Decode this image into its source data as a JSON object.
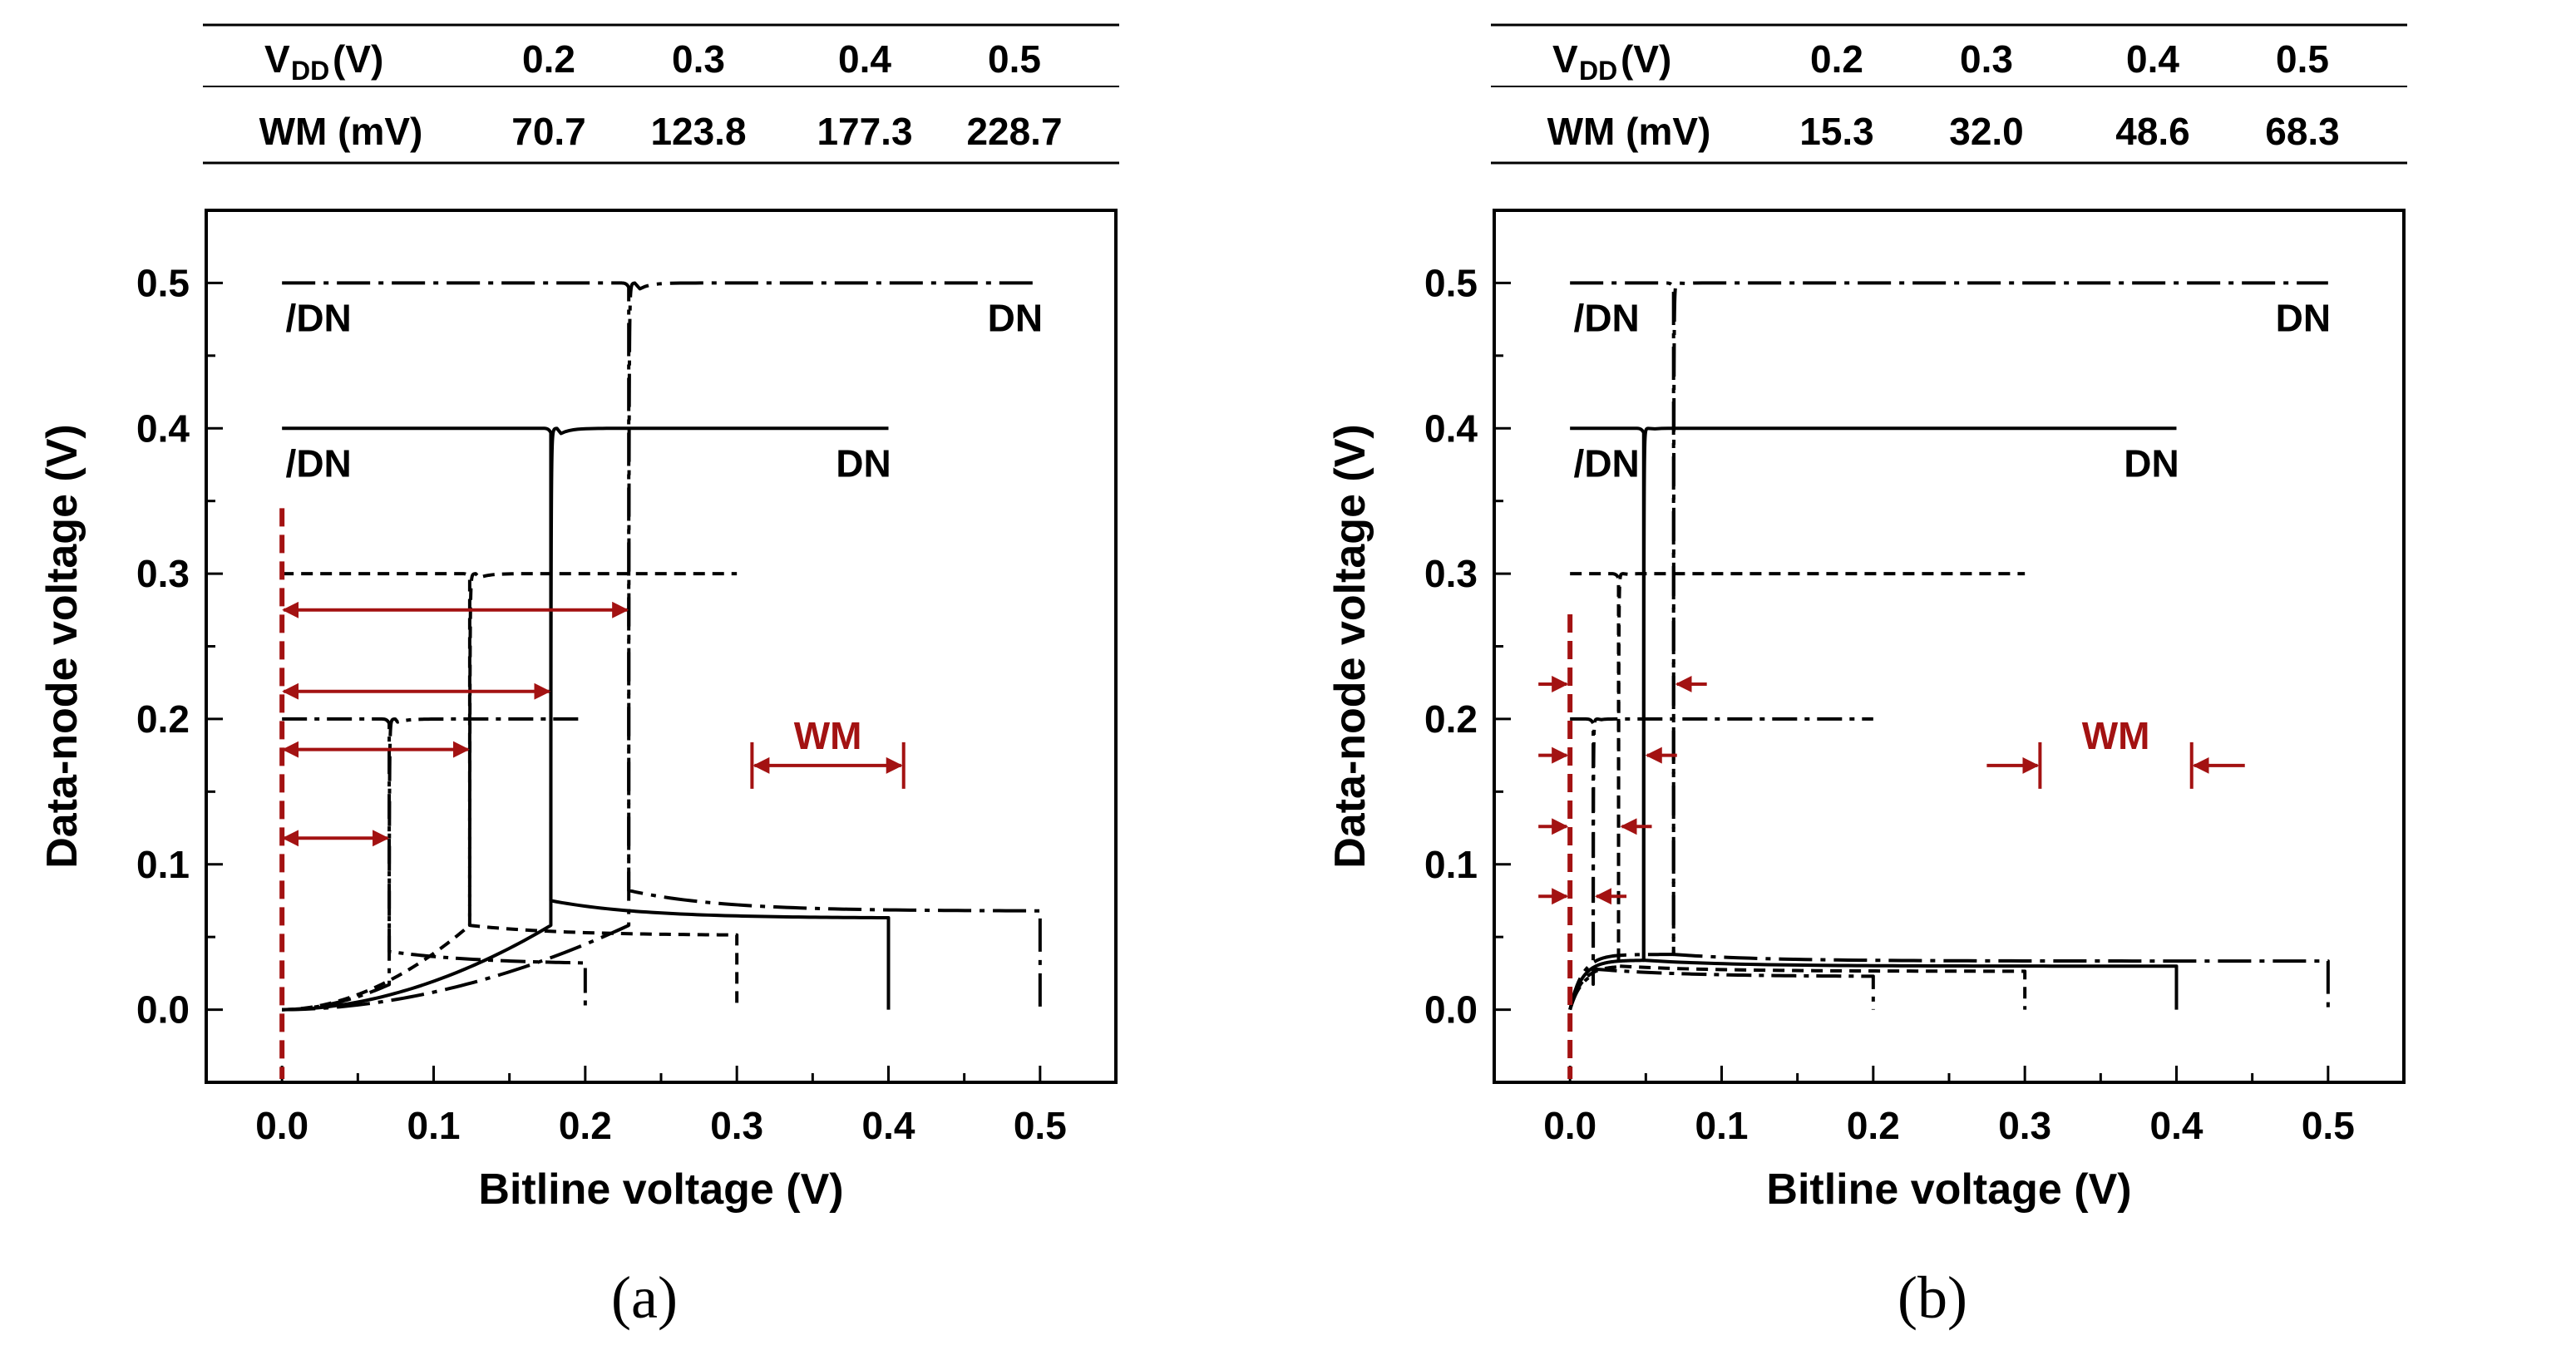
{
  "chart_data": [
    {
      "type": "line",
      "panel_label": "(a)",
      "table": {
        "row_headers": [
          "V",
          "DD",
          "(V)",
          "WM (mV)"
        ],
        "columns": [
          "0.2",
          "0.3",
          "0.4",
          "0.5"
        ],
        "wm_values": [
          "70.7",
          "123.8",
          "177.3",
          "228.7"
        ]
      },
      "xlabel": "Bitline voltage (V)",
      "ylabel": "Data-node voltage (V)",
      "xlim": [
        -0.05,
        0.55
      ],
      "ylim": [
        -0.05,
        0.55
      ],
      "xticks": [
        "0.0",
        "0.1",
        "0.2",
        "0.3",
        "0.4",
        "0.5"
      ],
      "yticks": [
        "0.0",
        "0.1",
        "0.2",
        "0.3",
        "0.4",
        "0.5"
      ],
      "curve_labels": {
        "left": "/DN",
        "right": "DN"
      },
      "wm_label": "WM",
      "wm_legend_range": [
        0.31,
        0.41
      ],
      "series": [
        {
          "vdd": 0.2,
          "style": "dash-dot",
          "switch": 0.0707,
          "high": 0.2,
          "low": 0.04
        },
        {
          "vdd": 0.3,
          "style": "short-dash",
          "switch": 0.1238,
          "high": 0.3,
          "low": 0.058
        },
        {
          "vdd": 0.4,
          "style": "solid",
          "switch": 0.1773,
          "high": 0.4,
          "low": 0.075
        },
        {
          "vdd": 0.5,
          "style": "long-dash-dot",
          "switch": 0.2287,
          "high": 0.5,
          "low": 0.082
        }
      ]
    },
    {
      "type": "line",
      "panel_label": "(b)",
      "table": {
        "row_headers": [
          "V",
          "DD",
          "(V)",
          "WM (mV)"
        ],
        "columns": [
          "0.2",
          "0.3",
          "0.4",
          "0.5"
        ],
        "wm_values": [
          "15.3",
          "32.0",
          "48.6",
          "68.3"
        ]
      },
      "xlabel": "Bitline voltage (V)",
      "ylabel": "Data-node voltage (V)",
      "xlim": [
        -0.05,
        0.55
      ],
      "ylim": [
        -0.05,
        0.55
      ],
      "xticks": [
        "0.0",
        "0.1",
        "0.2",
        "0.3",
        "0.4",
        "0.5"
      ],
      "yticks": [
        "0.0",
        "0.1",
        "0.2",
        "0.3",
        "0.4",
        "0.5"
      ],
      "curve_labels": {
        "left": "/DN",
        "right": "DN"
      },
      "wm_label": "WM",
      "wm_legend_range": [
        0.31,
        0.41
      ],
      "series": [
        {
          "vdd": 0.2,
          "style": "dash-dot",
          "switch": 0.0153,
          "high": 0.2,
          "low": 0.028
        },
        {
          "vdd": 0.3,
          "style": "short-dash",
          "switch": 0.032,
          "high": 0.3,
          "low": 0.03
        },
        {
          "vdd": 0.4,
          "style": "solid",
          "switch": 0.0486,
          "high": 0.4,
          "low": 0.034
        },
        {
          "vdd": 0.5,
          "style": "long-dash-dot",
          "switch": 0.0683,
          "high": 0.5,
          "low": 0.038
        }
      ]
    }
  ],
  "colors": {
    "ink": "#000000",
    "accent": "#a31212"
  }
}
